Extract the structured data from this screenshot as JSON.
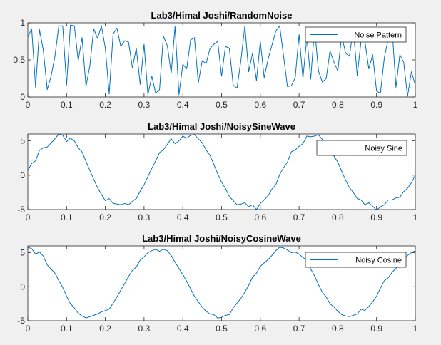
{
  "chart_data": [
    {
      "type": "line",
      "title": "Lab3/Himal Joshi/RandomNoise",
      "xlim": [
        0,
        1
      ],
      "ylim": [
        0,
        1
      ],
      "xticks": [
        0,
        0.1,
        0.2,
        0.3,
        0.4,
        0.5,
        0.6,
        0.7,
        0.8,
        0.9,
        1
      ],
      "xtick_labels": [
        "0",
        "0.1",
        "0.2",
        "0.3",
        "0.4",
        "0.5",
        "0.6",
        "0.7",
        "0.8",
        "0.9",
        "1"
      ],
      "yticks": [
        0,
        0.5,
        1
      ],
      "ytick_labels": [
        "0",
        "0.5",
        "1"
      ],
      "legend_position": "top-right",
      "color": "#0072bd",
      "series": [
        {
          "name": "Noise Pattern",
          "x": [
            0,
            0.01,
            0.02,
            0.03,
            0.04,
            0.05,
            0.06,
            0.07,
            0.08,
            0.09,
            0.1,
            0.11,
            0.12,
            0.13,
            0.14,
            0.15,
            0.16,
            0.17,
            0.18,
            0.19,
            0.2,
            0.21,
            0.22,
            0.23,
            0.24,
            0.25,
            0.26,
            0.27,
            0.28,
            0.29,
            0.3,
            0.31,
            0.32,
            0.33,
            0.34,
            0.35,
            0.36,
            0.37,
            0.38,
            0.39,
            0.4,
            0.41,
            0.42,
            0.43,
            0.44,
            0.45,
            0.46,
            0.47,
            0.48,
            0.49,
            0.5,
            0.51,
            0.52,
            0.53,
            0.54,
            0.55,
            0.56,
            0.57,
            0.58,
            0.59,
            0.6,
            0.61,
            0.62,
            0.63,
            0.64,
            0.65,
            0.66,
            0.67,
            0.68,
            0.69,
            0.7,
            0.71,
            0.72,
            0.73,
            0.74,
            0.75,
            0.76,
            0.77,
            0.78,
            0.79,
            0.8,
            0.81,
            0.82,
            0.83,
            0.84,
            0.85,
            0.86,
            0.87,
            0.88,
            0.89,
            0.9,
            0.91,
            0.92,
            0.93,
            0.94,
            0.95,
            0.96,
            0.97,
            0.98,
            0.99,
            1
          ],
          "values": [
            0.81,
            0.92,
            0.13,
            0.91,
            0.63,
            0.1,
            0.28,
            0.55,
            0.96,
            0.96,
            0.16,
            0.97,
            0.96,
            0.49,
            0.8,
            0.14,
            0.42,
            0.92,
            0.79,
            0.96,
            0.66,
            0.04,
            0.85,
            0.93,
            0.68,
            0.76,
            0.74,
            0.39,
            0.66,
            0.17,
            0.71,
            0.03,
            0.28,
            0.05,
            0.1,
            0.82,
            0.69,
            0.32,
            0.95,
            0.03,
            0.44,
            0.38,
            0.77,
            0.8,
            0.19,
            0.49,
            0.45,
            0.65,
            0.71,
            0.75,
            0.28,
            0.68,
            0.66,
            0.16,
            0.12,
            0.5,
            0.96,
            0.34,
            0.59,
            0.22,
            0.75,
            0.26,
            0.51,
            0.7,
            0.89,
            0.96,
            0.55,
            0.14,
            0.15,
            0.26,
            0.84,
            0.25,
            0.81,
            0.24,
            0.93,
            0.35,
            0.2,
            0.25,
            0.62,
            0.47,
            0.35,
            0.83,
            0.59,
            0.55,
            0.92,
            0.29,
            0.76,
            0.75,
            0.38,
            0.57,
            0.08,
            0.05,
            0.53,
            0.78,
            0.93,
            0.13,
            0.57,
            0.47,
            0.01,
            0.34,
            0.16
          ]
        }
      ]
    },
    {
      "type": "line",
      "title": "Lab3/Himal Joshi/NoisySineWave",
      "xlim": [
        0,
        1
      ],
      "ylim": [
        -5,
        6
      ],
      "xticks": [
        0,
        0.1,
        0.2,
        0.3,
        0.4,
        0.5,
        0.6,
        0.7,
        0.8,
        0.9,
        1
      ],
      "xtick_labels": [
        "0",
        "0.1",
        "0.2",
        "0.3",
        "0.4",
        "0.5",
        "0.6",
        "0.7",
        "0.8",
        "0.9",
        "1"
      ],
      "yticks": [
        -5,
        0,
        5
      ],
      "ytick_labels": [
        "-5",
        "0",
        "5"
      ],
      "legend_position": "top-right",
      "color": "#0072bd",
      "series": [
        {
          "name": "Noisy Sine",
          "x": [
            0,
            0.01,
            0.02,
            0.03,
            0.04,
            0.05,
            0.06,
            0.07,
            0.08,
            0.09,
            0.1,
            0.11,
            0.12,
            0.13,
            0.14,
            0.15,
            0.16,
            0.17,
            0.18,
            0.19,
            0.2,
            0.21,
            0.22,
            0.23,
            0.24,
            0.25,
            0.26,
            0.27,
            0.28,
            0.29,
            0.3,
            0.31,
            0.32,
            0.33,
            0.34,
            0.35,
            0.36,
            0.37,
            0.38,
            0.39,
            0.4,
            0.41,
            0.42,
            0.43,
            0.44,
            0.45,
            0.46,
            0.47,
            0.48,
            0.49,
            0.5,
            0.51,
            0.52,
            0.53,
            0.54,
            0.55,
            0.56,
            0.57,
            0.58,
            0.59,
            0.6,
            0.61,
            0.62,
            0.63,
            0.64,
            0.65,
            0.66,
            0.67,
            0.68,
            0.69,
            0.7,
            0.71,
            0.72,
            0.73,
            0.74,
            0.75,
            0.76,
            0.77,
            0.78,
            0.79,
            0.8,
            0.81,
            0.82,
            0.83,
            0.84,
            0.85,
            0.86,
            0.87,
            0.88,
            0.89,
            0.9,
            0.91,
            0.92,
            0.93,
            0.94,
            0.95,
            0.96,
            0.97,
            0.98,
            0.99,
            1
          ],
          "values": [
            0.7,
            1.7,
            2.1,
            3.6,
            4.0,
            4.1,
            4.7,
            5.3,
            6.0,
            5.8,
            4.9,
            5.4,
            5.0,
            4.0,
            3.4,
            2.0,
            0.7,
            -0.6,
            -1.8,
            -2.8,
            -3.7,
            -3.4,
            -4.1,
            -4.2,
            -4.3,
            -4.1,
            -4.3,
            -3.8,
            -3.4,
            -2.3,
            -1.4,
            -0.2,
            1.0,
            2.1,
            3.3,
            3.7,
            4.5,
            5.3,
            4.6,
            5.0,
            5.7,
            5.4,
            5.8,
            5.9,
            5.3,
            4.7,
            3.7,
            2.9,
            1.6,
            0.2,
            -1.0,
            -1.9,
            -3.1,
            -3.7,
            -4.3,
            -4.2,
            -4.0,
            -4.6,
            -4.3,
            -5.0,
            -4.1,
            -3.6,
            -3.0,
            -2.0,
            -1.4,
            0.1,
            1.1,
            1.9,
            3.4,
            3.7,
            4.2,
            4.6,
            5.7,
            5.6,
            5.7,
            5.9,
            5.2,
            4.5,
            3.6,
            2.8,
            1.9,
            0.6,
            -0.7,
            -1.8,
            -2.5,
            -3.4,
            -3.6,
            -4.3,
            -4.0,
            -4.5,
            -5.1,
            -4.6,
            -4.3,
            -3.6,
            -3.6,
            -3.3,
            -3.2,
            -2.4,
            -1.9,
            -1.1,
            0.0
          ]
        }
      ]
    },
    {
      "type": "line",
      "title": "Lab3/Himal Joshi/NoisyCosineWave",
      "xlim": [
        0,
        1
      ],
      "ylim": [
        -5,
        6
      ],
      "xticks": [
        0,
        0.1,
        0.2,
        0.3,
        0.4,
        0.5,
        0.6,
        0.7,
        0.8,
        0.9,
        1
      ],
      "xtick_labels": [
        "0",
        "0.1",
        "0.2",
        "0.3",
        "0.4",
        "0.5",
        "0.6",
        "0.7",
        "0.8",
        "0.9",
        "1"
      ],
      "yticks": [
        -5,
        0,
        5
      ],
      "ytick_labels": [
        "-5",
        "0",
        "5"
      ],
      "legend_position": "top-right",
      "color": "#0072bd",
      "series": [
        {
          "name": "Noisy Cosine",
          "x": [
            0,
            0.01,
            0.02,
            0.03,
            0.04,
            0.05,
            0.06,
            0.07,
            0.08,
            0.09,
            0.1,
            0.11,
            0.12,
            0.13,
            0.14,
            0.15,
            0.16,
            0.17,
            0.18,
            0.19,
            0.2,
            0.21,
            0.22,
            0.23,
            0.24,
            0.25,
            0.26,
            0.27,
            0.28,
            0.29,
            0.3,
            0.31,
            0.32,
            0.33,
            0.34,
            0.35,
            0.36,
            0.37,
            0.38,
            0.39,
            0.4,
            0.41,
            0.42,
            0.43,
            0.44,
            0.45,
            0.46,
            0.47,
            0.48,
            0.49,
            0.5,
            0.51,
            0.52,
            0.53,
            0.54,
            0.55,
            0.56,
            0.57,
            0.58,
            0.59,
            0.6,
            0.61,
            0.62,
            0.63,
            0.64,
            0.65,
            0.66,
            0.67,
            0.68,
            0.69,
            0.7,
            0.71,
            0.72,
            0.73,
            0.74,
            0.75,
            0.76,
            0.77,
            0.78,
            0.79,
            0.8,
            0.81,
            0.82,
            0.83,
            0.84,
            0.85,
            0.86,
            0.87,
            0.88,
            0.89,
            0.9,
            0.91,
            0.92,
            0.93,
            0.94,
            0.95,
            0.96,
            0.97,
            0.98,
            0.99,
            1
          ],
          "values": [
            5.8,
            5.6,
            4.8,
            5.1,
            4.5,
            3.2,
            2.6,
            2.0,
            0.9,
            -0.1,
            -1.4,
            -2.5,
            -3.1,
            -3.9,
            -4.3,
            -4.6,
            -4.4,
            -4.2,
            -4.0,
            -3.7,
            -3.5,
            -3.3,
            -2.4,
            -1.5,
            -0.5,
            0.5,
            1.5,
            2.4,
            2.9,
            3.9,
            4.4,
            5.0,
            5.3,
            5.5,
            5.2,
            5.5,
            5.3,
            4.6,
            3.6,
            2.7,
            1.8,
            0.8,
            -0.3,
            -1.4,
            -2.2,
            -3.0,
            -3.6,
            -4.0,
            -4.1,
            -4.6,
            -4.5,
            -4.2,
            -4.1,
            -3.1,
            -2.4,
            -1.7,
            -0.8,
            0.2,
            1.4,
            2.0,
            3.0,
            3.5,
            4.0,
            4.6,
            5.3,
            5.8,
            5.7,
            5.4,
            5.0,
            5.1,
            4.8,
            4.3,
            3.9,
            2.6,
            1.6,
            0.3,
            -0.8,
            -1.5,
            -2.5,
            -3.0,
            -3.6,
            -4.1,
            -4.3,
            -4.4,
            -4.2,
            -4.0,
            -3.3,
            -3.5,
            -2.9,
            -2.2,
            -1.4,
            -0.2,
            0.9,
            1.3,
            2.1,
            2.7,
            3.5,
            4.1,
            4.6,
            5.0,
            5.3
          ]
        }
      ]
    }
  ]
}
